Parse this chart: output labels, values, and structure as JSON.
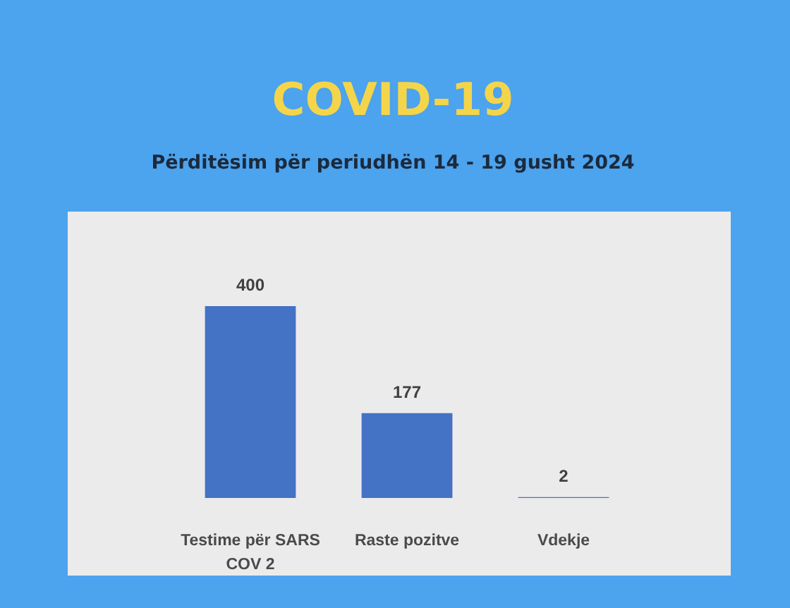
{
  "chart_data": {
    "type": "bar",
    "title": "COVID-19",
    "subtitle": "Përditësim për periudhën 14 - 19 gusht 2024",
    "categories": [
      "Testime për SARS COV 2",
      "Raste pozitve",
      "Vdekje"
    ],
    "values": [
      400,
      177,
      2
    ],
    "color": "#4472c4",
    "data_labels": true
  }
}
